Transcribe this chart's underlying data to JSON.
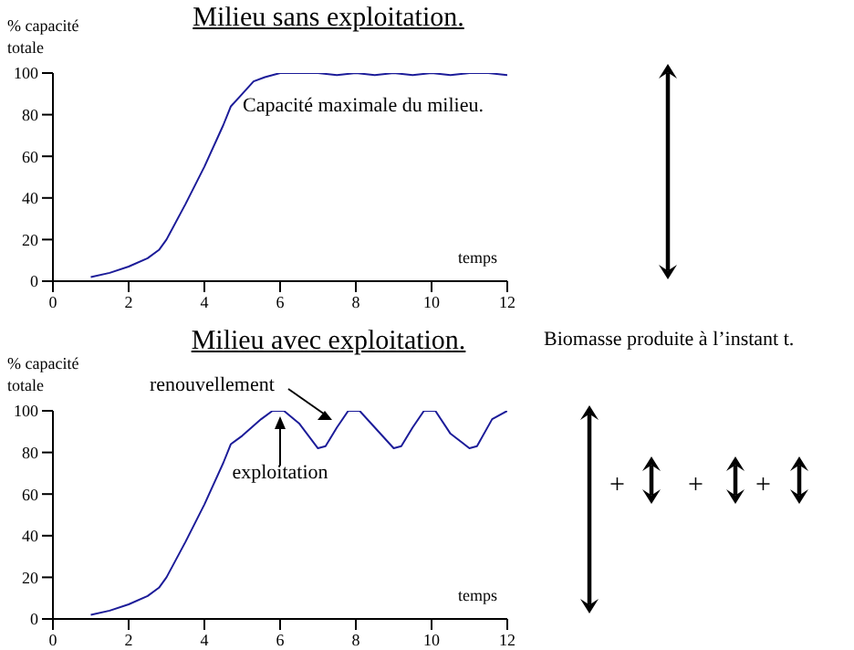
{
  "chart_data": [
    {
      "type": "line",
      "title": "Milieu sans exploitation.",
      "ylabel": "% capacité totale",
      "xlabel": "temps",
      "series": [
        {
          "color": "#1c1c99",
          "x": [
            1,
            1.5,
            2,
            2.5,
            2.8,
            3,
            3.5,
            4,
            4.5,
            4.7,
            5,
            5.3,
            5.6,
            6,
            7,
            7.5,
            8,
            8.5,
            9,
            9.5,
            10,
            10.5,
            11,
            11.5,
            12
          ],
          "values": [
            2,
            4,
            7,
            11,
            15,
            20,
            37,
            55,
            75,
            84,
            90,
            96,
            98,
            100,
            100,
            99,
            100,
            99,
            100,
            99,
            100,
            99,
            100,
            100,
            99
          ]
        }
      ],
      "xlim": [
        0,
        12
      ],
      "xticks": [
        0,
        2,
        4,
        6,
        8,
        10,
        12
      ],
      "ylim": [
        0,
        100
      ],
      "yticks": [
        0,
        20,
        40,
        60,
        80,
        100
      ],
      "annotations": [
        "Capacité maximale du milieu."
      ]
    },
    {
      "type": "line",
      "title": "Milieu avec exploitation.",
      "ylabel": "% capacité totale",
      "xlabel": "temps",
      "series": [
        {
          "color": "#1c1c99",
          "x": [
            1,
            1.5,
            2,
            2.5,
            2.8,
            3,
            3.5,
            4,
            4.5,
            4.7,
            5,
            5.5,
            5.8,
            6.1,
            6.5,
            7,
            7.2,
            7.5,
            7.8,
            8.1,
            8.5,
            9,
            9.2,
            9.5,
            9.8,
            10.1,
            10.5,
            11,
            11.2,
            11.6,
            12
          ],
          "values": [
            2,
            4,
            7,
            11,
            15,
            20,
            37,
            55,
            75,
            84,
            88,
            96,
            100,
            100,
            94,
            82,
            83,
            92,
            100,
            100,
            92,
            82,
            83,
            92,
            100,
            100,
            89,
            82,
            83,
            96,
            100
          ]
        }
      ],
      "xlim": [
        0,
        12
      ],
      "xticks": [
        0,
        2,
        4,
        6,
        8,
        10,
        12
      ],
      "ylim": [
        0,
        100
      ],
      "yticks": [
        0,
        20,
        40,
        60,
        80,
        100
      ],
      "annotations": [
        {
          "text": "exploitation",
          "x": 6,
          "y": 100
        },
        "renouvellement",
        "Biomasse produite à l’instant t.",
        "+",
        "+",
        "+"
      ]
    }
  ]
}
